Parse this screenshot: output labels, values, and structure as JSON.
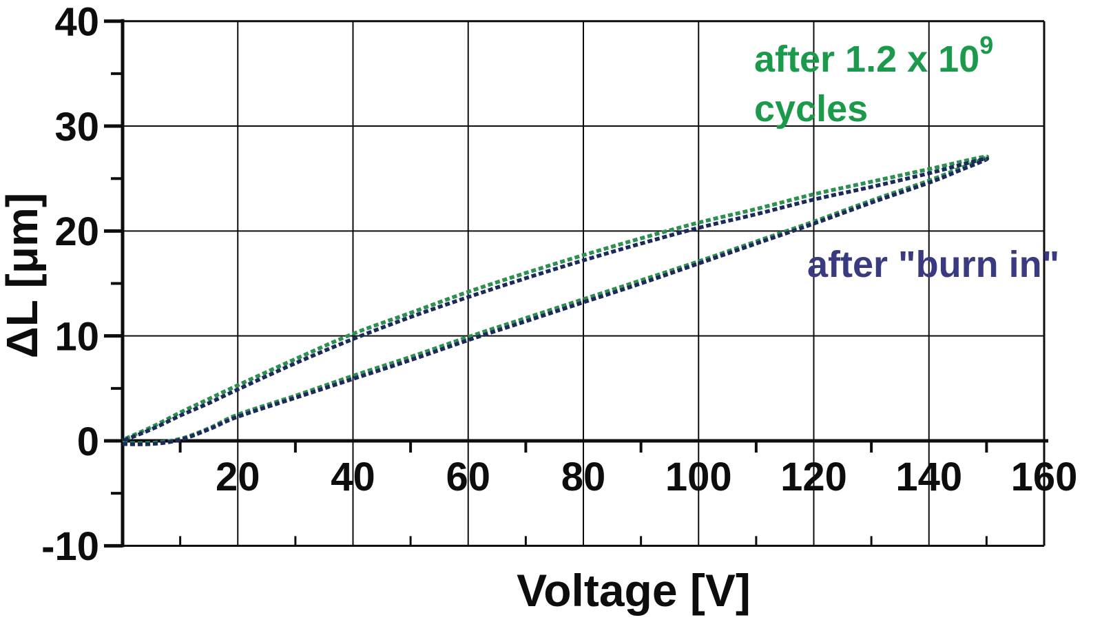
{
  "chart_data": {
    "type": "line",
    "title": "",
    "xlabel": "Voltage [V]",
    "ylabel": "ΔL  [μm]",
    "xlim": [
      0,
      160
    ],
    "ylim": [
      -10,
      40
    ],
    "grid": true,
    "legend_position": "inline-annotations",
    "x_ticks": [
      {
        "v": 20,
        "label": "20"
      },
      {
        "v": 40,
        "label": "40"
      },
      {
        "v": 60,
        "label": "60"
      },
      {
        "v": 80,
        "label": "80"
      },
      {
        "v": 100,
        "label": "100"
      },
      {
        "v": 120,
        "label": "120"
      },
      {
        "v": 140,
        "label": "140"
      },
      {
        "v": 160,
        "label": "160"
      }
    ],
    "x_minor_ticks": [
      10,
      30,
      50,
      70,
      90,
      110,
      130,
      150
    ],
    "y_ticks": [
      {
        "v": 40,
        "label": "40"
      },
      {
        "v": 30,
        "label": "30"
      },
      {
        "v": 20,
        "label": "20"
      },
      {
        "v": 10,
        "label": "10"
      },
      {
        "v": 0,
        "label": "0"
      },
      {
        "v": -10,
        "label": "-10"
      }
    ],
    "y_minor_ticks": [
      35,
      25,
      15,
      5,
      -5
    ],
    "annotations": {
      "cycles": {
        "line1": "after 1.2 x 10",
        "superscript": "9",
        "line2": "cycles",
        "color": "#1a9a4a"
      },
      "burn_in": {
        "text": "after \"burn in\"",
        "color": "#3a3a80"
      }
    },
    "series": [
      {
        "name": "after 1.2 x 10^9 cycles",
        "color": "#2e8f52",
        "points_up": [
          [
            0,
            -0.2
          ],
          [
            5,
            -0.2
          ],
          [
            10,
            0.2
          ],
          [
            15,
            1.2
          ],
          [
            20,
            2.5
          ],
          [
            30,
            4.3
          ],
          [
            40,
            6.2
          ],
          [
            50,
            8.0
          ],
          [
            60,
            9.9
          ],
          [
            70,
            11.7
          ],
          [
            80,
            13.5
          ],
          [
            90,
            15.3
          ],
          [
            100,
            17.1
          ],
          [
            110,
            19.0
          ],
          [
            120,
            20.9
          ],
          [
            130,
            22.9
          ],
          [
            140,
            24.8
          ],
          [
            145,
            25.9
          ],
          [
            150,
            27.1
          ]
        ],
        "points_down": [
          [
            150,
            27.1
          ],
          [
            140,
            25.9
          ],
          [
            130,
            24.7
          ],
          [
            120,
            23.5
          ],
          [
            110,
            22.1
          ],
          [
            100,
            20.8
          ],
          [
            90,
            19.3
          ],
          [
            80,
            17.7
          ],
          [
            70,
            16.0
          ],
          [
            60,
            14.2
          ],
          [
            50,
            12.2
          ],
          [
            40,
            10.2
          ],
          [
            30,
            7.8
          ],
          [
            20,
            5.3
          ],
          [
            15,
            4.0
          ],
          [
            10,
            2.7
          ],
          [
            5,
            1.3
          ],
          [
            0,
            0.1
          ]
        ]
      },
      {
        "name": "after \"burn in\"",
        "color": "#1b2a5a",
        "points_up": [
          [
            0,
            -0.3
          ],
          [
            5,
            -0.3
          ],
          [
            10,
            0.1
          ],
          [
            15,
            1.1
          ],
          [
            20,
            2.3
          ],
          [
            30,
            4.1
          ],
          [
            40,
            5.9
          ],
          [
            50,
            7.7
          ],
          [
            60,
            9.6
          ],
          [
            70,
            11.4
          ],
          [
            80,
            13.2
          ],
          [
            90,
            15.0
          ],
          [
            100,
            16.9
          ],
          [
            110,
            18.8
          ],
          [
            120,
            20.7
          ],
          [
            130,
            22.7
          ],
          [
            140,
            24.6
          ],
          [
            145,
            25.7
          ],
          [
            150,
            26.9
          ]
        ],
        "points_down": [
          [
            150,
            26.9
          ],
          [
            140,
            25.5
          ],
          [
            130,
            24.2
          ],
          [
            120,
            23.0
          ],
          [
            110,
            21.6
          ],
          [
            100,
            20.3
          ],
          [
            90,
            18.8
          ],
          [
            80,
            17.2
          ],
          [
            70,
            15.5
          ],
          [
            60,
            13.7
          ],
          [
            50,
            11.8
          ],
          [
            40,
            9.7
          ],
          [
            30,
            7.4
          ],
          [
            20,
            4.9
          ],
          [
            15,
            3.6
          ],
          [
            10,
            2.4
          ],
          [
            5,
            1.1
          ],
          [
            0,
            0.0
          ]
        ]
      }
    ],
    "axis_color": "#0d0d0d"
  }
}
